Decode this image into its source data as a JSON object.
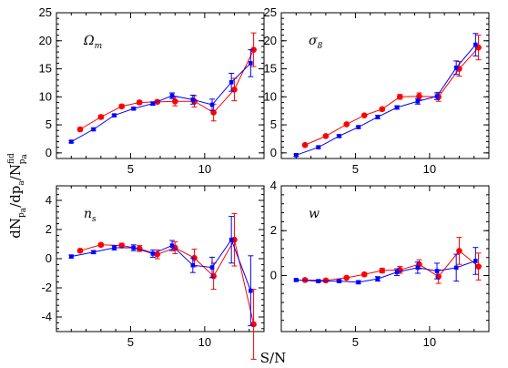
{
  "chart_data": [
    {
      "type": "line",
      "panel": "Omega_m",
      "label_main": "Ω",
      "label_sub": "m",
      "xlim": [
        0,
        14
      ],
      "ylim": [
        -1,
        25
      ],
      "yticks": [
        0,
        5,
        10,
        15,
        20,
        25
      ],
      "xticks": [
        5,
        10
      ],
      "series": [
        {
          "color": "#ff0000",
          "marker": "circle",
          "x": [
            1.6,
            3.0,
            4.4,
            5.6,
            6.8,
            8.0,
            9.3,
            10.6,
            12.0,
            13.3
          ],
          "y": [
            4.2,
            6.4,
            8.3,
            9.0,
            9.1,
            9.2,
            9.2,
            7.2,
            11.3,
            18.4
          ],
          "err": [
            0.3,
            0.3,
            0.3,
            0.3,
            0.3,
            0.8,
            1.0,
            1.5,
            2.0,
            3.0
          ]
        },
        {
          "color": "#0000ff",
          "marker": "square",
          "x": [
            1.0,
            2.5,
            3.9,
            5.2,
            6.5,
            7.8,
            9.2,
            10.5,
            11.8,
            13.1
          ],
          "y": [
            2.0,
            4.2,
            6.7,
            7.9,
            8.8,
            10.2,
            9.5,
            8.6,
            12.6,
            16.0
          ],
          "err": [
            0.2,
            0.2,
            0.2,
            0.2,
            0.3,
            0.5,
            0.8,
            1.0,
            1.6,
            2.4
          ]
        }
      ]
    },
    {
      "type": "line",
      "panel": "sigma_8",
      "label_main": "σ",
      "label_sub": "8",
      "xlim": [
        0,
        14
      ],
      "ylim": [
        -1,
        25
      ],
      "yticks": [
        0,
        5,
        10,
        15,
        20,
        25
      ],
      "xticks": [
        5,
        10
      ],
      "series": [
        {
          "color": "#ff0000",
          "marker": "circle",
          "x": [
            1.6,
            3.0,
            4.4,
            5.6,
            6.8,
            8.0,
            9.3,
            10.6,
            12.0,
            13.3
          ],
          "y": [
            1.4,
            3.0,
            5.1,
            6.7,
            7.8,
            10.0,
            10.1,
            10.0,
            15.0,
            18.8
          ],
          "err": [
            0.2,
            0.2,
            0.2,
            0.2,
            0.3,
            0.4,
            0.6,
            0.8,
            1.3,
            2.2
          ]
        },
        {
          "color": "#0000ff",
          "marker": "square",
          "x": [
            1.0,
            2.5,
            3.9,
            5.2,
            6.5,
            7.8,
            9.2,
            10.5,
            11.8,
            13.1
          ],
          "y": [
            -0.4,
            1.0,
            3.0,
            4.6,
            6.4,
            8.1,
            9.2,
            10.1,
            15.2,
            19.3
          ],
          "err": [
            0.2,
            0.2,
            0.2,
            0.2,
            0.3,
            0.3,
            0.5,
            0.6,
            1.2,
            2.0
          ]
        }
      ]
    },
    {
      "type": "line",
      "panel": "n_s",
      "label_main": "n",
      "label_sub": "s",
      "xlim": [
        0,
        14
      ],
      "ylim": [
        -5,
        5
      ],
      "yticks": [
        -4,
        -2,
        0,
        2,
        4
      ],
      "xticks": [
        5,
        10
      ],
      "series": [
        {
          "color": "#ff0000",
          "marker": "circle",
          "x": [
            1.6,
            3.0,
            4.4,
            5.6,
            6.8,
            8.0,
            9.3,
            10.6,
            12.0,
            13.3
          ],
          "y": [
            0.55,
            0.95,
            0.9,
            0.7,
            0.3,
            0.75,
            0.05,
            -1.2,
            1.3,
            -4.5
          ],
          "err": [
            0.1,
            0.1,
            0.15,
            0.2,
            0.3,
            0.4,
            0.6,
            0.9,
            1.8,
            2.4
          ]
        },
        {
          "color": "#0000ff",
          "marker": "square",
          "x": [
            1.0,
            2.5,
            3.9,
            5.2,
            6.5,
            7.8,
            9.2,
            10.5,
            11.8,
            13.1
          ],
          "y": [
            0.15,
            0.45,
            0.75,
            0.75,
            0.35,
            0.9,
            -0.45,
            -0.6,
            1.3,
            -2.2
          ],
          "err": [
            0.1,
            0.1,
            0.15,
            0.2,
            0.25,
            0.35,
            0.5,
            0.7,
            1.6,
            2.4
          ]
        }
      ]
    },
    {
      "type": "line",
      "panel": "w",
      "label_main": "w",
      "label_sub": "",
      "xlim": [
        0,
        14
      ],
      "ylim": [
        -2.5,
        4
      ],
      "yticks": [
        0,
        2,
        4
      ],
      "xticks": [
        5,
        10
      ],
      "series": [
        {
          "color": "#ff0000",
          "marker": "circle",
          "x": [
            1.6,
            3.0,
            4.4,
            5.6,
            6.8,
            8.0,
            9.3,
            10.6,
            12.0,
            13.3
          ],
          "y": [
            -0.2,
            -0.22,
            -0.1,
            0.05,
            0.22,
            0.25,
            0.5,
            -0.05,
            1.1,
            0.4
          ],
          "err": [
            0.05,
            0.05,
            0.05,
            0.07,
            0.1,
            0.15,
            0.2,
            0.3,
            0.6,
            0.6
          ]
        },
        {
          "color": "#0000ff",
          "marker": "square",
          "x": [
            1.0,
            2.5,
            3.9,
            5.2,
            6.5,
            7.8,
            9.2,
            10.5,
            11.8,
            13.1
          ],
          "y": [
            -0.2,
            -0.25,
            -0.25,
            -0.3,
            -0.15,
            0.15,
            0.35,
            0.2,
            0.35,
            0.65
          ],
          "err": [
            0.05,
            0.05,
            0.05,
            0.07,
            0.1,
            0.15,
            0.25,
            0.35,
            0.6,
            0.6
          ]
        }
      ]
    }
  ],
  "axes": {
    "xlabel": "S/N",
    "ylabel_main": "dN",
    "ylabel_sub1": "p",
    "ylabel_subsub1": "a",
    "ylabel_mid": "/dp",
    "ylabel_sub2": "a",
    "ylabel_slash": "/N",
    "ylabel_sup": "fid",
    "ylabel_sub3": "p",
    "ylabel_subsub3": "a"
  }
}
